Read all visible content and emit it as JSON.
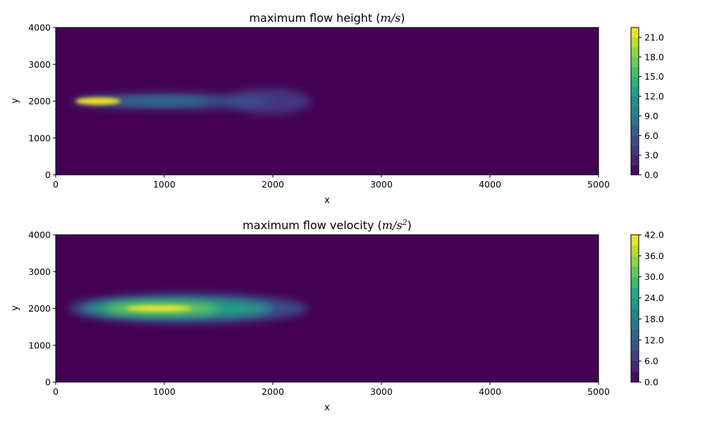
{
  "chart_data": [
    {
      "type": "heatmap",
      "title_prefix": "maximum flow height (",
      "title_unit_main": "m/s",
      "title_unit_sup": "",
      "title_suffix": ")",
      "xlabel": "x",
      "ylabel": "y",
      "xlim": [
        0,
        5000
      ],
      "ylim": [
        0,
        4000
      ],
      "x_ticks": [
        "0",
        "1000",
        "2000",
        "3000",
        "4000",
        "5000"
      ],
      "y_ticks": [
        "0",
        "1000",
        "2000",
        "3000",
        "4000"
      ],
      "colorbar": {
        "ticks": [
          "0.0",
          "3.0",
          "6.0",
          "9.0",
          "12.0",
          "15.0",
          "18.0",
          "21.0"
        ],
        "vmin": 0,
        "vmax": 22.5,
        "levels": [
          0,
          1.5,
          3,
          4.5,
          6,
          7.5,
          9,
          10.5,
          12,
          13.5,
          15,
          16.5,
          18,
          19.5,
          21,
          22.5
        ]
      },
      "colormap": "viridis",
      "features": [
        {
          "name": "tail",
          "level": 3.5,
          "x_range": [
            1600,
            2350
          ],
          "y_range": [
            1650,
            2350
          ]
        },
        {
          "name": "body",
          "level": 5.5,
          "x_range": [
            150,
            2000
          ],
          "y_range": [
            1800,
            2200
          ]
        },
        {
          "name": "core",
          "level": 8.5,
          "x_range": [
            500,
            1400
          ],
          "y_range": [
            1900,
            2100
          ]
        },
        {
          "name": "peak",
          "level": 22.0,
          "x_range": [
            180,
            600
          ],
          "y_range": [
            1900,
            2100
          ],
          "center": [
            420,
            2000
          ]
        }
      ]
    },
    {
      "type": "heatmap",
      "title_prefix": "maximum flow velocity (",
      "title_unit_main": "m/s",
      "title_unit_sup": "2",
      "title_suffix": ")",
      "xlabel": "x",
      "ylabel": "y",
      "xlim": [
        0,
        5000
      ],
      "ylim": [
        0,
        4000
      ],
      "x_ticks": [
        "0",
        "1000",
        "2000",
        "3000",
        "4000",
        "5000"
      ],
      "y_ticks": [
        "0",
        "1000",
        "2000",
        "3000",
        "4000"
      ],
      "colorbar": {
        "ticks": [
          "0.0",
          "6.0",
          "12.0",
          "18.0",
          "24.0",
          "30.0",
          "36.0",
          "42.0"
        ],
        "vmin": 0,
        "vmax": 42,
        "levels": [
          0,
          3,
          6,
          9,
          12,
          15,
          18,
          21,
          24,
          27,
          30,
          33,
          36,
          39,
          42
        ]
      },
      "colormap": "viridis",
      "features": [
        {
          "name": "outer",
          "level": 10,
          "x_range": [
            120,
            2320
          ],
          "y_range": [
            1600,
            2400
          ]
        },
        {
          "name": "mid",
          "level": 24,
          "x_range": [
            250,
            2000
          ],
          "y_range": [
            1750,
            2250
          ]
        },
        {
          "name": "inner",
          "level": 33,
          "x_range": [
            450,
            1500
          ],
          "y_range": [
            1850,
            2150
          ]
        },
        {
          "name": "peak",
          "level": 41,
          "x_range": [
            650,
            1250
          ],
          "y_range": [
            1920,
            2080
          ],
          "center": [
            900,
            2000
          ]
        }
      ]
    }
  ]
}
